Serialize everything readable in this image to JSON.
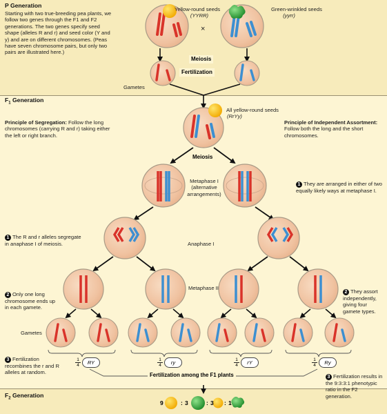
{
  "sections": {
    "p_generation": "P Generation",
    "f1_generation": "F",
    "f1_sub": "1",
    "f1_rest": " Generation",
    "f2_generation": "F",
    "f2_sub": "2",
    "f2_rest": " Generation"
  },
  "parents": {
    "yellow_round": "Yellow-round seeds",
    "yellow_round_genotype": "(YYRR)",
    "green_wrinkled": "Green-wrinkled seeds",
    "green_wrinkled_genotype": "(yyrr)",
    "cross_symbol": "×"
  },
  "intro_text": "Starting with two true-breeding pea plants, we follow two genes through the F1 and F2 generations. The two genes specify seed shape (alleles R and r) and seed color (Y and y) and are on different chromosomes. (Peas have seven chromosome pairs, but only two pairs are illustrated here.)",
  "labels": {
    "meiosis_p": "Meiosis",
    "fertilization": "Fertilization",
    "gametes_p": "Gametes",
    "f1_seeds": "All yellow-round seeds",
    "f1_genotype": "(RrYy)",
    "meiosis_f1": "Meiosis",
    "metaphase1": "Metaphase I (alternative arrangements)",
    "anaphase1": "Anaphase I",
    "metaphase2": "Metaphase II",
    "gametes_f1": "Gametes",
    "fertilization_f1": "Fertilization among the F1 plants"
  },
  "principles": {
    "segregation_title": "Principle of Segregation:",
    "segregation_text": " Follow the long chromosomes (carrying R and r) taking either the left or right branch.",
    "independent_title": "Principle of Independent Assortment:",
    "independent_text": " Follow both the long and the short chromosomes."
  },
  "notes": {
    "left_1_num": "1",
    "left_1": "The R and r alleles segregate in anaphase I of meiosis.",
    "left_2_num": "2",
    "left_2": "Only one long chromosome ends up in each gamete.",
    "left_3_num": "3",
    "left_3": "Fertilization recombines the r and R alleles at random.",
    "right_1_num": "1",
    "right_1": "They are arranged in either of two equally likely ways at metaphase I.",
    "right_2_num": "2",
    "right_2": "They assort independently, giving four gamete types.",
    "right_3_num": "3",
    "right_3": "Fertilization results in the 9:3:3:1 phenotypic ratio in the F2 generation."
  },
  "gamete_types": [
    {
      "num": "1",
      "den": "4",
      "genotype": "RY"
    },
    {
      "num": "1",
      "den": "4",
      "genotype": "ry"
    },
    {
      "num": "1",
      "den": "4",
      "genotype": "rY"
    },
    {
      "num": "1",
      "den": "4",
      "genotype": "Ry"
    }
  ],
  "ratio": {
    "n1": "9",
    "n2": "3",
    "n3": "3",
    "n4": "1",
    "sep": ":"
  },
  "chromosome_letters": {
    "R": "R",
    "r": "r",
    "Y": "Y",
    "y": "y"
  },
  "colors": {
    "page_bg": "#fdf5d3",
    "band": "#f6e9b6",
    "cell_fill": "#f3c6a8",
    "cell_yellow": "#f2d77a",
    "cell_border": "#a89a86",
    "red_chromosome": "#d9332a",
    "blue_chromosome": "#3d8fd1",
    "yellow_seed": "#f7c41a",
    "green_seed": "#37a23c",
    "divider": "#9a8f70"
  }
}
